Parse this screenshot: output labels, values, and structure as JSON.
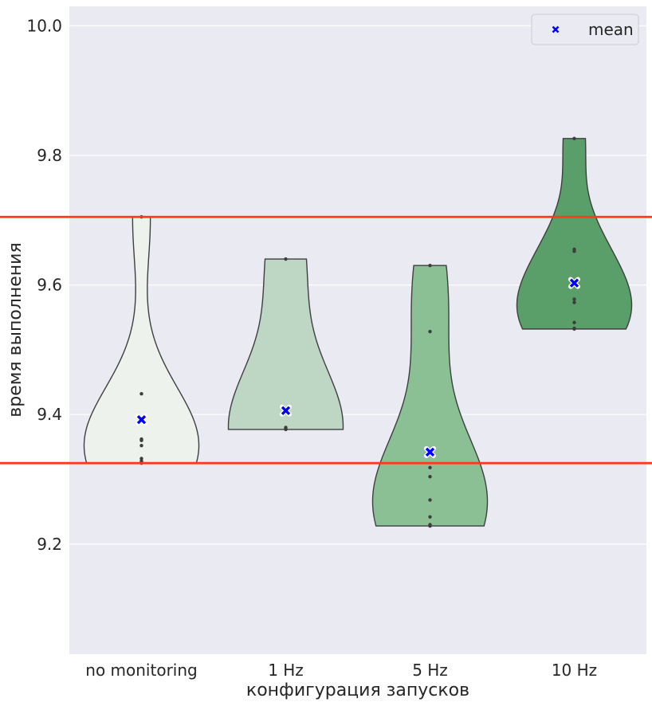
{
  "chart_data": {
    "type": "violin",
    "xlabel": "конфигурация запусков",
    "ylabel": "время выполнения",
    "ylim": [
      9.03,
      10.03
    ],
    "yticks": [
      9.2,
      9.4,
      9.6,
      9.8,
      10.0
    ],
    "ytick_labels": [
      "9.2",
      "9.4",
      "9.6",
      "9.8",
      "10.0"
    ],
    "categories": [
      "no monitoring",
      "1 Hz",
      "5 Hz",
      "10 Hz"
    ],
    "grid": true,
    "legend": {
      "placement": "top-right",
      "entries": [
        {
          "label": "mean",
          "marker": "x",
          "color": "#0000ff"
        }
      ]
    },
    "reference_lines": [
      {
        "y": 9.705,
        "color": "#ff3a1a"
      },
      {
        "y": 9.325,
        "color": "#ff3a1a"
      }
    ],
    "series": [
      {
        "category": "no monitoring",
        "color": "#eef2ec",
        "points": [
          9.705,
          9.432,
          9.362,
          9.36,
          9.352,
          9.332,
          9.328,
          9.325
        ],
        "mean": 9.392
      },
      {
        "category": "1 Hz",
        "color": "#bdd7c4",
        "points": [
          9.64,
          9.38,
          9.378,
          9.377
        ],
        "mean": 9.406
      },
      {
        "category": "5 Hz",
        "color": "#8ac094",
        "points": [
          9.63,
          9.528,
          9.318,
          9.304,
          9.268,
          9.242,
          9.23,
          9.228
        ],
        "mean": 9.342
      },
      {
        "category": "10 Hz",
        "color": "#5a9e69",
        "points": [
          9.826,
          9.655,
          9.652,
          9.578,
          9.573,
          9.542,
          9.533,
          9.532
        ],
        "mean": 9.603
      }
    ]
  }
}
